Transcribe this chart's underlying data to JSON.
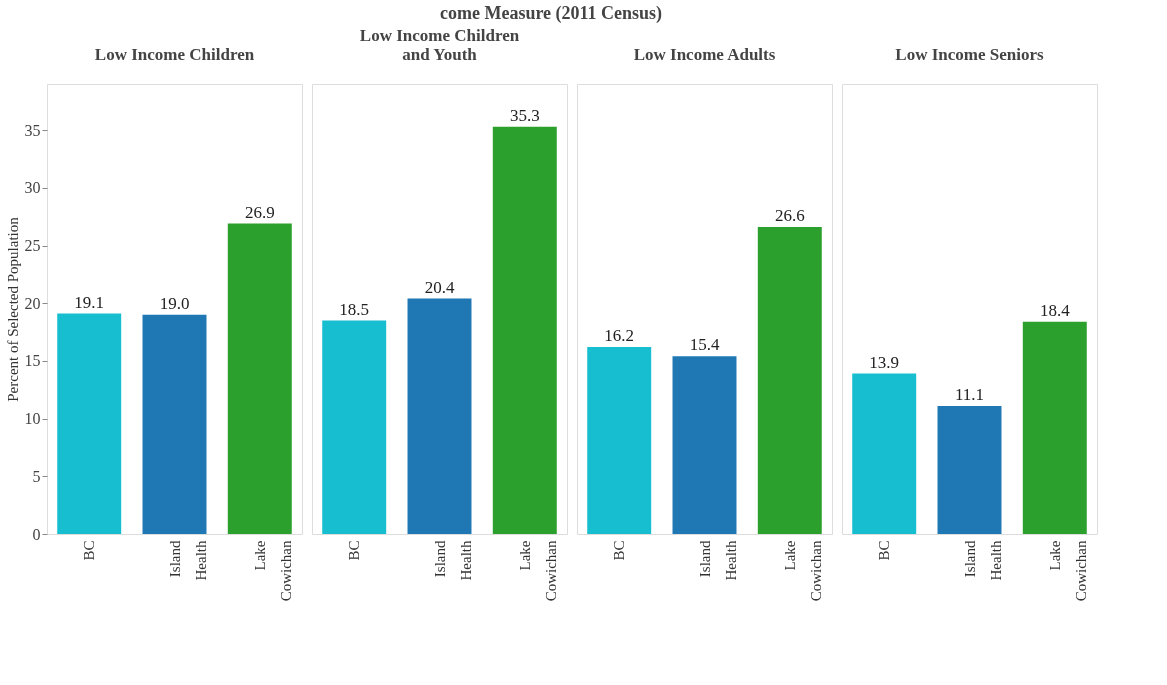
{
  "chart_data": [
    {
      "type": "bar",
      "title": "Low Income Children",
      "annotations": [
        "come Measure (2011 Census)"
      ],
      "ylabel": "Percent of Selected Population",
      "categories": [
        "BC",
        "Island Health",
        "Lake Cowichan"
      ],
      "values": [
        19.1,
        19.0,
        26.9
      ],
      "value_labels": [
        "19.1",
        "19.0",
        "26.9"
      ],
      "colors": [
        "#17becf",
        "#1f77b4",
        "#2ca02c"
      ],
      "ylim": [
        0,
        39
      ],
      "yticks": [
        0,
        5,
        10,
        15,
        20,
        25,
        30,
        35
      ],
      "grid": false
    },
    {
      "type": "bar",
      "title": "Low Income Children and Youth",
      "categories": [
        "BC",
        "Island Health",
        "Lake Cowichan"
      ],
      "values": [
        18.5,
        20.4,
        35.3
      ],
      "value_labels": [
        "18.5",
        "20.4",
        "35.3"
      ],
      "colors": [
        "#17becf",
        "#1f77b4",
        "#2ca02c"
      ],
      "ylim": [
        0,
        39
      ],
      "yticks": [
        0,
        5,
        10,
        15,
        20,
        25,
        30,
        35
      ],
      "tick_labels": "x",
      "grid": false
    },
    {
      "type": "bar",
      "title": "Low Income Adults",
      "categories": [
        "BC",
        "Island Health",
        "Lake Cowichan"
      ],
      "values": [
        16.2,
        15.4,
        26.6
      ],
      "value_labels": [
        "16.2",
        "15.4",
        "26.6"
      ],
      "colors": [
        "#17becf",
        "#1f77b4",
        "#2ca02c"
      ],
      "ylim": [
        0,
        39
      ],
      "yticks": [
        0,
        5,
        10,
        15,
        20,
        25,
        30,
        35
      ],
      "tick_labels": "x",
      "grid": false
    },
    {
      "type": "bar",
      "title": "Low Income Seniors",
      "categories": [
        "BC",
        "Island Health",
        "Lake Cowichan"
      ],
      "values": [
        13.9,
        11.1,
        18.4
      ],
      "value_labels": [
        "13.9",
        "11.1",
        "18.4"
      ],
      "colors": [
        "#17becf",
        "#1f77b4",
        "#2ca02c"
      ],
      "ylim": [
        0,
        39
      ],
      "yticks": [
        0,
        5,
        10,
        15,
        20,
        25,
        30,
        35
      ],
      "tick_labels": "x",
      "grid": false
    }
  ]
}
